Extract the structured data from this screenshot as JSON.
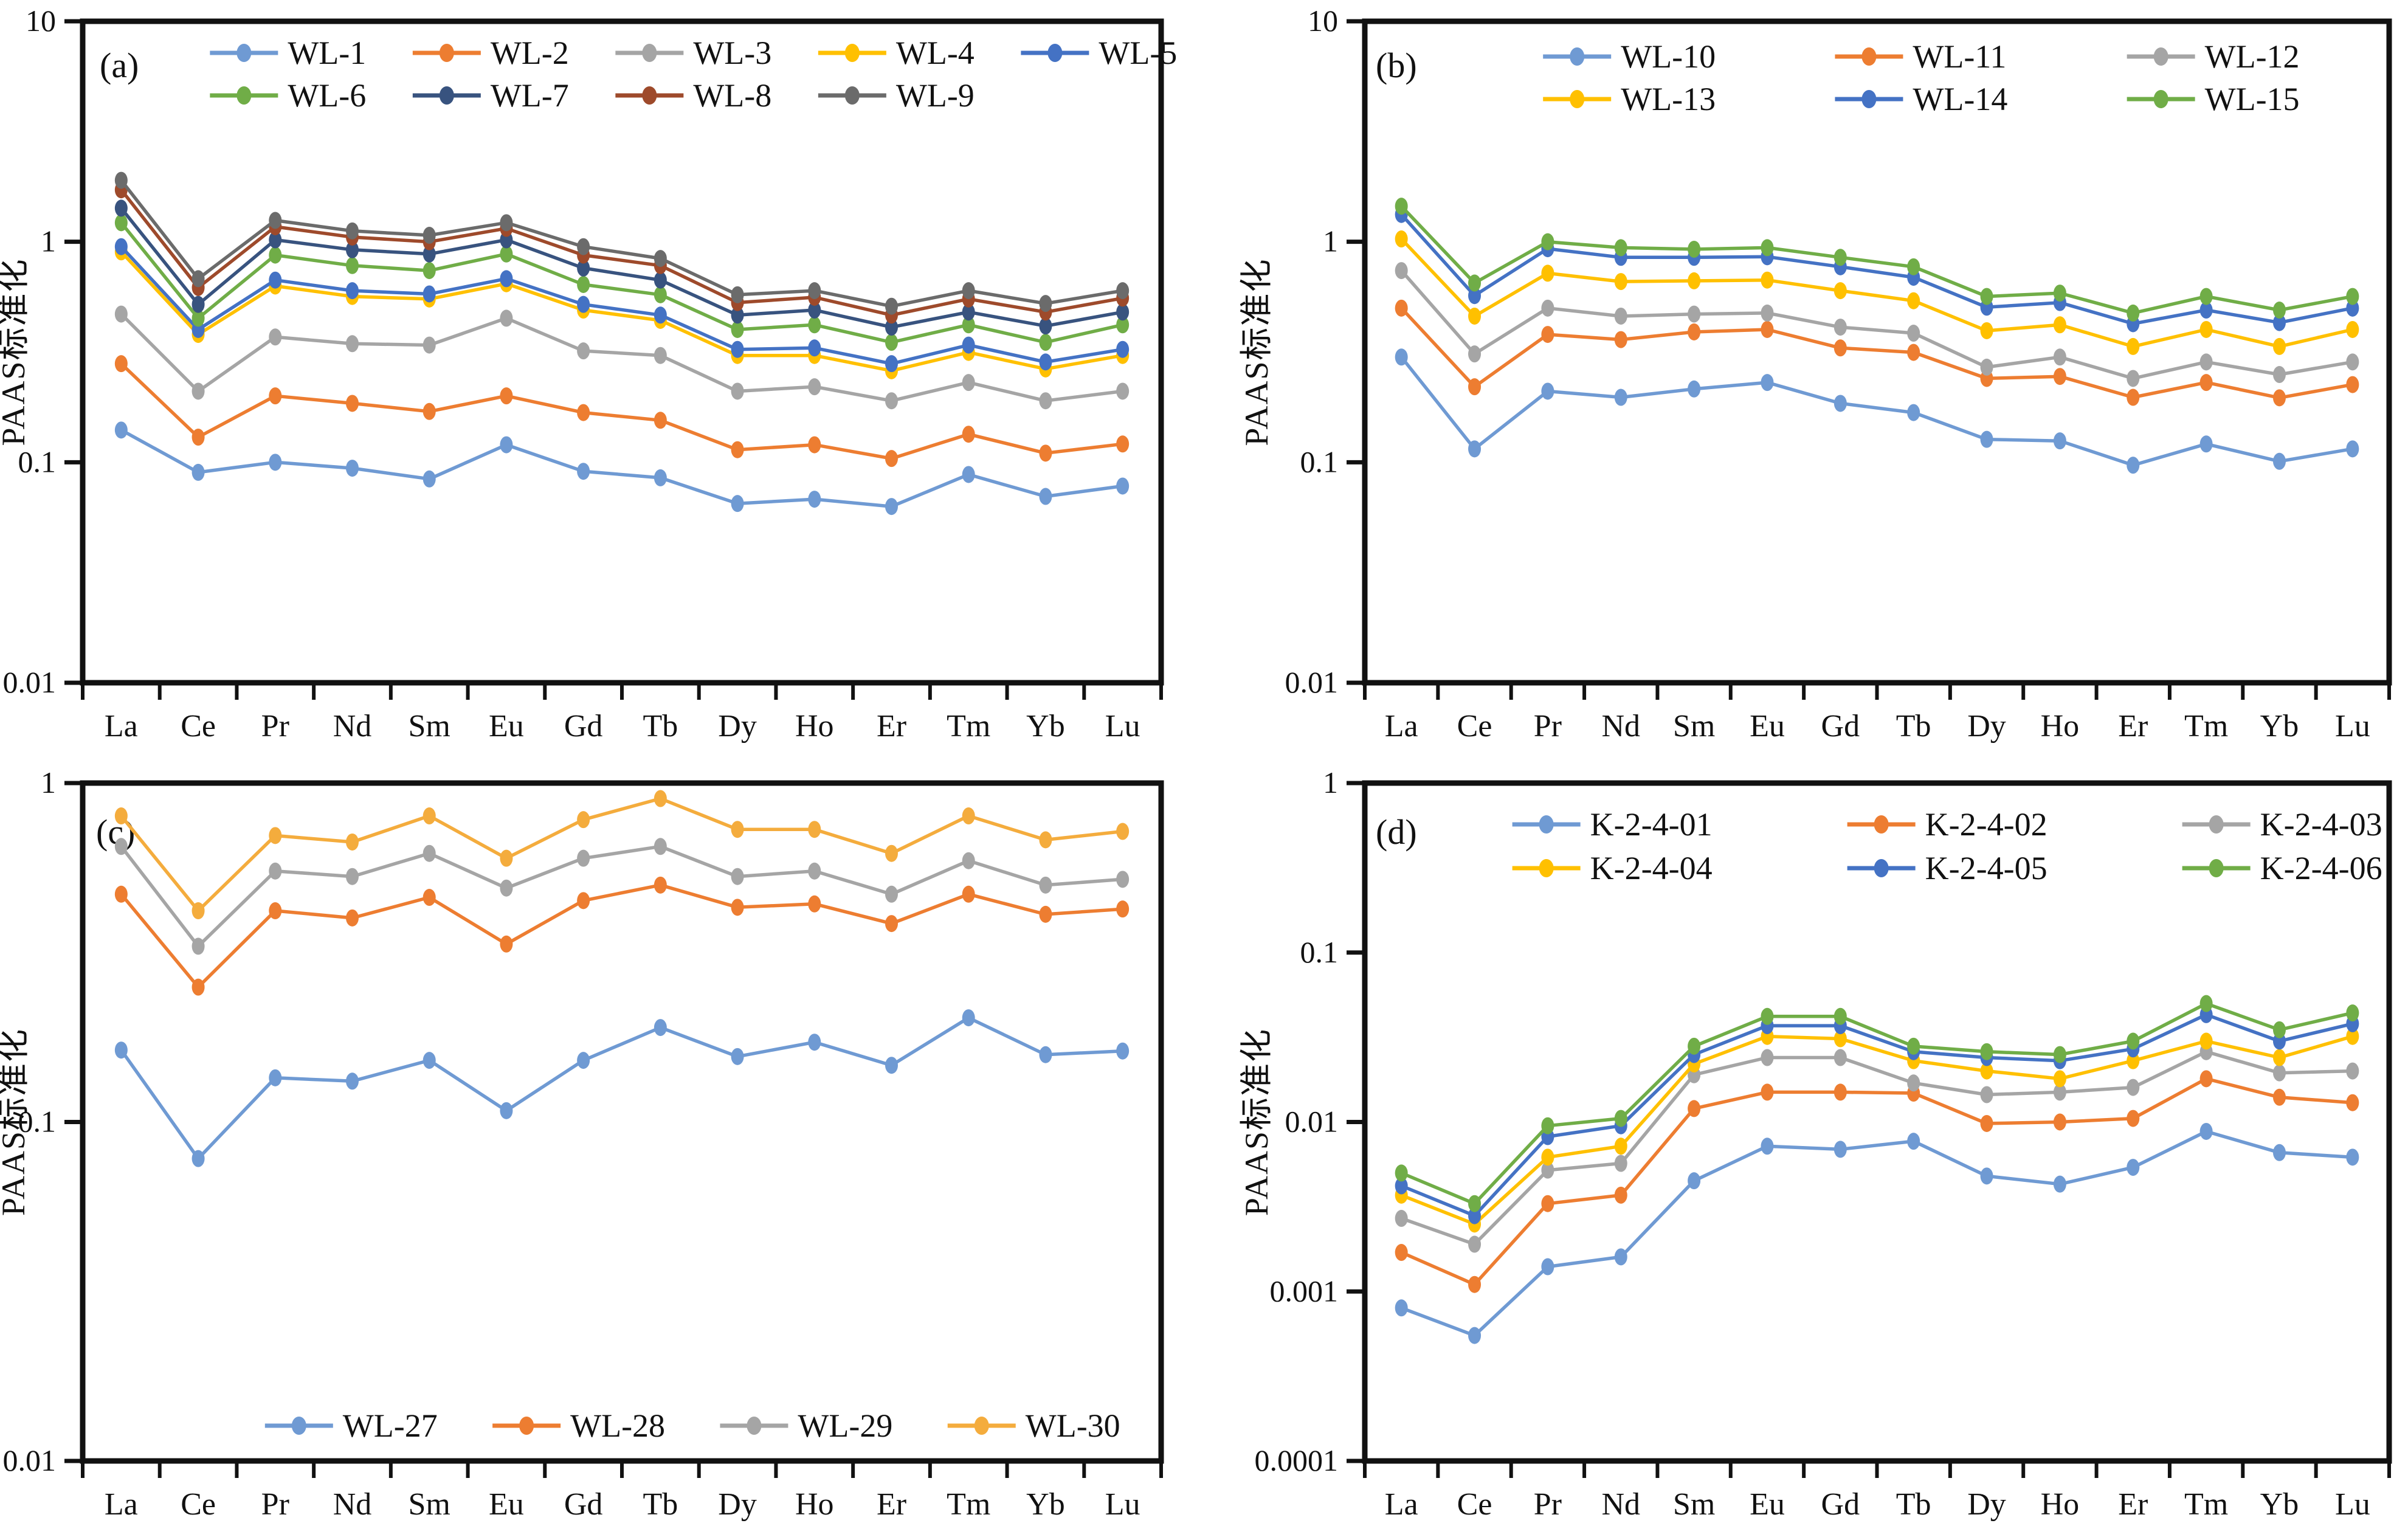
{
  "figure_title": "",
  "ylabel_text": "PAAS标准化",
  "chart_data": [
    {
      "panel_label": "(a)",
      "type": "line",
      "log_scale": true,
      "ylabel": "PAAS标准化",
      "ylim": [
        0.01,
        10
      ],
      "ytick_labels": [
        "10",
        "1",
        "0.1",
        "0.01"
      ],
      "ytick_values": [
        10,
        1,
        0.1,
        0.01
      ],
      "categories": [
        "La",
        "Ce",
        "Pr",
        "Nd",
        "Sm",
        "Eu",
        "Gd",
        "Tb",
        "Dy",
        "Ho",
        "Er",
        "Tm",
        "Yb",
        "Lu"
      ],
      "legend_rows": [
        [
          0,
          1,
          2,
          3,
          4
        ],
        [
          5,
          6,
          7,
          8
        ]
      ],
      "legend_position": "top",
      "series": [
        {
          "name": "WL-1",
          "color": "#6F9AD3",
          "values": [
            0.14,
            0.09,
            0.1,
            0.094,
            0.084,
            0.12,
            0.091,
            0.085,
            0.065,
            0.068,
            0.063,
            0.088,
            0.07,
            0.078
          ]
        },
        {
          "name": "WL-2",
          "color": "#ED7D31",
          "values": [
            0.28,
            0.13,
            0.2,
            0.185,
            0.17,
            0.2,
            0.168,
            0.155,
            0.114,
            0.12,
            0.104,
            0.134,
            0.11,
            0.121
          ]
        },
        {
          "name": "WL-3",
          "color": "#A5A5A5",
          "values": [
            0.47,
            0.21,
            0.37,
            0.345,
            0.34,
            0.45,
            0.32,
            0.305,
            0.21,
            0.22,
            0.19,
            0.23,
            0.19,
            0.21
          ]
        },
        {
          "name": "WL-4",
          "color": "#FFC000",
          "values": [
            0.9,
            0.38,
            0.63,
            0.565,
            0.55,
            0.645,
            0.49,
            0.44,
            0.305,
            0.305,
            0.26,
            0.315,
            0.265,
            0.305
          ]
        },
        {
          "name": "WL-5",
          "color": "#4472C4",
          "values": [
            0.95,
            0.4,
            0.67,
            0.6,
            0.58,
            0.68,
            0.52,
            0.465,
            0.325,
            0.33,
            0.28,
            0.34,
            0.285,
            0.325
          ]
        },
        {
          "name": "WL-6",
          "color": "#70AD47",
          "values": [
            1.22,
            0.45,
            0.87,
            0.78,
            0.74,
            0.88,
            0.64,
            0.575,
            0.4,
            0.42,
            0.35,
            0.42,
            0.35,
            0.42
          ]
        },
        {
          "name": "WL-7",
          "color": "#38537F",
          "values": [
            1.42,
            0.52,
            1.02,
            0.92,
            0.88,
            1.02,
            0.76,
            0.67,
            0.465,
            0.49,
            0.41,
            0.48,
            0.415,
            0.48
          ]
        },
        {
          "name": "WL-8",
          "color": "#9E4A2B",
          "values": [
            1.72,
            0.62,
            1.17,
            1.05,
            1.0,
            1.15,
            0.87,
            0.78,
            0.53,
            0.56,
            0.465,
            0.55,
            0.48,
            0.555
          ]
        },
        {
          "name": "WL-9",
          "color": "#6B6B6B",
          "values": [
            1.9,
            0.68,
            1.25,
            1.12,
            1.07,
            1.22,
            0.95,
            0.84,
            0.575,
            0.6,
            0.51,
            0.6,
            0.525,
            0.6
          ]
        }
      ]
    },
    {
      "panel_label": "(b)",
      "type": "line",
      "log_scale": true,
      "ylabel": "PAAS标准化",
      "ylim": [
        0.01,
        10
      ],
      "ytick_labels": [
        "10",
        "1",
        "0.1",
        "0.01"
      ],
      "ytick_values": [
        10,
        1,
        0.1,
        0.01
      ],
      "categories": [
        "La",
        "Ce",
        "Pr",
        "Nd",
        "Sm",
        "Eu",
        "Gd",
        "Tb",
        "Dy",
        "Ho",
        "Er",
        "Tm",
        "Yb",
        "Lu"
      ],
      "legend_rows": [
        [
          0,
          1,
          2
        ],
        [
          3,
          4,
          5
        ]
      ],
      "legend_position": "top",
      "series": [
        {
          "name": "WL-10",
          "color": "#6F9AD3",
          "values": [
            0.3,
            0.115,
            0.21,
            0.197,
            0.215,
            0.23,
            0.185,
            0.168,
            0.127,
            0.125,
            0.097,
            0.121,
            0.101,
            0.115
          ]
        },
        {
          "name": "WL-11",
          "color": "#ED7D31",
          "values": [
            0.5,
            0.22,
            0.38,
            0.36,
            0.39,
            0.4,
            0.33,
            0.315,
            0.24,
            0.245,
            0.197,
            0.23,
            0.196,
            0.225
          ]
        },
        {
          "name": "WL-12",
          "color": "#A5A5A5",
          "values": [
            0.74,
            0.31,
            0.5,
            0.46,
            0.47,
            0.475,
            0.41,
            0.385,
            0.27,
            0.3,
            0.24,
            0.285,
            0.25,
            0.285
          ]
        },
        {
          "name": "WL-13",
          "color": "#FFC000",
          "values": [
            1.03,
            0.46,
            0.72,
            0.66,
            0.665,
            0.67,
            0.6,
            0.54,
            0.395,
            0.42,
            0.335,
            0.4,
            0.335,
            0.4
          ]
        },
        {
          "name": "WL-14",
          "color": "#4472C4",
          "values": [
            1.33,
            0.57,
            0.93,
            0.85,
            0.85,
            0.855,
            0.77,
            0.69,
            0.505,
            0.53,
            0.425,
            0.49,
            0.43,
            0.5
          ]
        },
        {
          "name": "WL-15",
          "color": "#70AD47",
          "values": [
            1.45,
            0.65,
            1.0,
            0.94,
            0.925,
            0.94,
            0.85,
            0.77,
            0.565,
            0.585,
            0.475,
            0.565,
            0.49,
            0.565
          ]
        }
      ]
    },
    {
      "panel_label": "(c)",
      "type": "line",
      "log_scale": true,
      "ylabel": "PAAS标准化",
      "ylim": [
        0.01,
        1
      ],
      "ytick_labels": [
        "1",
        "0.1",
        "0.01"
      ],
      "ytick_values": [
        1,
        0.1,
        0.01
      ],
      "categories": [
        "La",
        "Ce",
        "Pr",
        "Nd",
        "Sm",
        "Eu",
        "Gd",
        "Tb",
        "Dy",
        "Ho",
        "Er",
        "Tm",
        "Yb",
        "Lu"
      ],
      "legend_rows": [
        [
          0,
          1,
          2,
          3
        ]
      ],
      "legend_position": "bottom",
      "series": [
        {
          "name": "WL-27",
          "color": "#6F9AD3",
          "values": [
            0.163,
            0.078,
            0.135,
            0.132,
            0.152,
            0.108,
            0.152,
            0.19,
            0.156,
            0.172,
            0.147,
            0.203,
            0.158,
            0.162
          ]
        },
        {
          "name": "WL-28",
          "color": "#ED7D31",
          "values": [
            0.47,
            0.25,
            0.42,
            0.4,
            0.46,
            0.335,
            0.45,
            0.5,
            0.43,
            0.44,
            0.385,
            0.47,
            0.41,
            0.425
          ]
        },
        {
          "name": "WL-29",
          "color": "#A5A5A5",
          "values": [
            0.65,
            0.33,
            0.55,
            0.53,
            0.62,
            0.49,
            0.6,
            0.65,
            0.53,
            0.55,
            0.47,
            0.59,
            0.5,
            0.52
          ]
        },
        {
          "name": "WL-30",
          "color": "#F4AC3D",
          "values": [
            0.8,
            0.42,
            0.7,
            0.67,
            0.8,
            0.6,
            0.78,
            0.9,
            0.73,
            0.73,
            0.62,
            0.8,
            0.68,
            0.72
          ]
        }
      ]
    },
    {
      "panel_label": "(d)",
      "type": "line",
      "log_scale": true,
      "ylabel": "PAAS标准化",
      "ylim": [
        0.0001,
        1
      ],
      "ytick_labels": [
        "1",
        "0.1",
        "0.01",
        "0.001",
        "0.0001"
      ],
      "ytick_values": [
        1,
        0.1,
        0.01,
        0.001,
        0.0001
      ],
      "categories": [
        "La",
        "Ce",
        "Pr",
        "Nd",
        "Sm",
        "Eu",
        "Gd",
        "Tb",
        "Dy",
        "Ho",
        "Er",
        "Tm",
        "Yb",
        "Lu"
      ],
      "legend_rows": [
        [
          0,
          1,
          2
        ],
        [
          3,
          4,
          5
        ]
      ],
      "legend_position": "top",
      "series": [
        {
          "name": "K-2-4-01",
          "color": "#6F9AD3",
          "values": [
            0.0008,
            0.00055,
            0.0014,
            0.0016,
            0.0045,
            0.0072,
            0.0069,
            0.0077,
            0.0048,
            0.0043,
            0.0054,
            0.0088,
            0.0066,
            0.0062
          ]
        },
        {
          "name": "K-2-4-02",
          "color": "#ED7D31",
          "values": [
            0.0017,
            0.0011,
            0.0033,
            0.0037,
            0.012,
            0.015,
            0.015,
            0.0148,
            0.0098,
            0.01,
            0.0105,
            0.018,
            0.014,
            0.013
          ]
        },
        {
          "name": "K-2-4-03",
          "color": "#A5A5A5",
          "values": [
            0.0027,
            0.0019,
            0.0052,
            0.0057,
            0.019,
            0.024,
            0.024,
            0.017,
            0.0145,
            0.015,
            0.016,
            0.026,
            0.0195,
            0.02
          ]
        },
        {
          "name": "K-2-4-04",
          "color": "#FFC000",
          "values": [
            0.0037,
            0.0025,
            0.0062,
            0.0072,
            0.022,
            0.032,
            0.031,
            0.023,
            0.02,
            0.018,
            0.023,
            0.03,
            0.024,
            0.032
          ]
        },
        {
          "name": "K-2-4-05",
          "color": "#4472C4",
          "values": [
            0.0042,
            0.0028,
            0.0082,
            0.0095,
            0.025,
            0.037,
            0.037,
            0.026,
            0.024,
            0.023,
            0.027,
            0.043,
            0.03,
            0.038
          ]
        },
        {
          "name": "K-2-4-06",
          "color": "#70AD47",
          "values": [
            0.005,
            0.0033,
            0.0095,
            0.0105,
            0.028,
            0.042,
            0.042,
            0.028,
            0.026,
            0.025,
            0.03,
            0.05,
            0.035,
            0.044
          ]
        }
      ]
    }
  ]
}
